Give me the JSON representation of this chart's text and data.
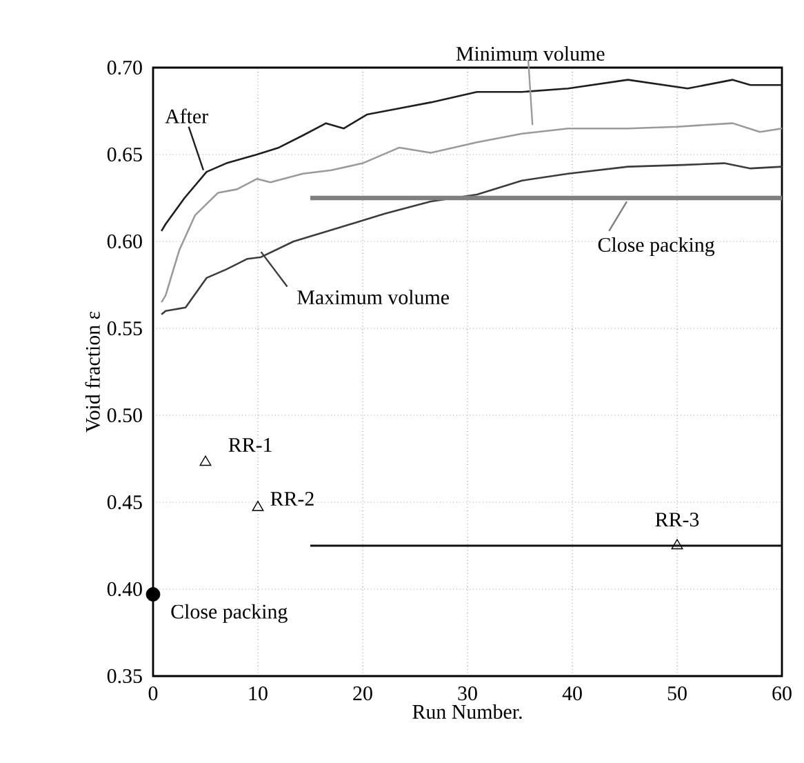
{
  "chart_data": {
    "type": "line",
    "xlabel": "Run Number.",
    "ylabel": "Void fraction ε",
    "xlim": [
      0,
      60
    ],
    "xticks": [
      0,
      10,
      20,
      30,
      40,
      50,
      60
    ],
    "ylim": [
      0.35,
      0.7
    ],
    "yticks": [
      0.35,
      {
        "value": 0.4,
        "label": "0.40"
      },
      0.45,
      {
        "value": 0.5,
        "label": "0.50"
      },
      0.55,
      {
        "value": 0.6,
        "label": "0.60"
      },
      0.65,
      {
        "value": 0.7,
        "label": "0.70"
      }
    ],
    "grid": true,
    "series": [
      {
        "name": "After",
        "color": "#1e1e1e",
        "x": [
          0.8,
          1.2,
          3,
          5.1,
          7,
          9.9,
          12,
          14.3,
          16.5,
          18.2,
          20.4,
          23,
          26.5,
          30.9,
          35.2,
          39.6,
          45.3,
          51,
          55.3,
          57,
          60
        ],
        "values": [
          0.606,
          0.61,
          0.625,
          0.64,
          0.645,
          0.65,
          0.654,
          0.661,
          0.668,
          0.665,
          0.673,
          0.676,
          0.68,
          0.686,
          0.686,
          0.688,
          0.693,
          0.688,
          0.693,
          0.69,
          0.69
        ]
      },
      {
        "name": "Minimum volume",
        "color": "#9a9a9a",
        "x": [
          0.8,
          1.2,
          2.5,
          4,
          6.2,
          8,
          9.9,
          11.2,
          14.3,
          17,
          20,
          23.5,
          26.5,
          30.9,
          35.2,
          39.6,
          45.3,
          50,
          55.3,
          57.9,
          60
        ],
        "values": [
          0.565,
          0.569,
          0.595,
          0.615,
          0.628,
          0.63,
          0.636,
          0.634,
          0.639,
          0.641,
          0.645,
          0.654,
          0.651,
          0.657,
          0.662,
          0.665,
          0.665,
          0.666,
          0.668,
          0.663,
          0.665
        ]
      },
      {
        "name": "Maximum volume",
        "color": "#3c3c3c",
        "x": [
          0.8,
          1.2,
          3.1,
          5.1,
          7,
          9,
          10.3,
          13.4,
          17.8,
          22.1,
          26.5,
          30.9,
          35.2,
          39.6,
          45.3,
          50.5,
          54.5,
          57,
          60
        ],
        "values": [
          0.558,
          0.56,
          0.562,
          0.579,
          0.584,
          0.59,
          0.591,
          0.6,
          0.608,
          0.616,
          0.623,
          0.627,
          0.635,
          0.639,
          0.643,
          0.644,
          0.645,
          0.642,
          0.643
        ]
      },
      {
        "name": "Close packing",
        "color": "#7f7f7f",
        "x": [
          15,
          60
        ],
        "values": [
          0.625,
          0.625
        ]
      },
      {
        "color": "#111111",
        "x": [
          15,
          60
        ],
        "values": [
          0.425,
          0.425
        ]
      },
      {
        "name": "Close packing",
        "type": "scatter",
        "marker": "circle",
        "color": "#000000",
        "x": [
          0
        ],
        "values": [
          0.397
        ]
      },
      {
        "name": "RR-1",
        "type": "scatter",
        "marker": "triangle",
        "color": "#000000",
        "x": [
          5
        ],
        "values": [
          0.473
        ]
      },
      {
        "name": "RR-2",
        "type": "scatter",
        "marker": "triangle",
        "color": "#000000",
        "x": [
          10
        ],
        "values": [
          0.447
        ]
      },
      {
        "name": "RR-3",
        "type": "scatter",
        "marker": "triangle",
        "color": "#000000",
        "x": [
          50
        ],
        "values": [
          0.425
        ]
      }
    ]
  }
}
